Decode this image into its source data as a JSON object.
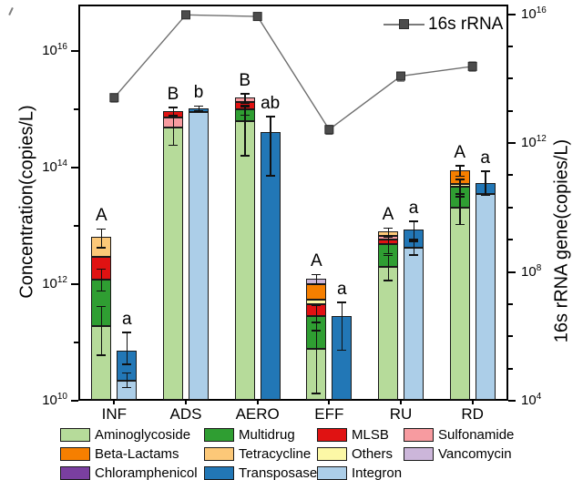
{
  "chart_data": {
    "type": "bar",
    "subtype": "stacked-log-bar-pairs-with-line-overlay",
    "categories": [
      "INF",
      "ADS",
      "AERO",
      "EFF",
      "RU",
      "RD"
    ],
    "left_axis": {
      "label": "Concentration(copies/L)",
      "scale": "log10",
      "log_min": 10,
      "log_max": 16.8,
      "major_ticks": [
        10,
        12,
        14,
        16
      ],
      "minor_ticks": [
        11,
        13,
        15
      ]
    },
    "right_axis": {
      "label": "16s rRNA gene(copies/L)",
      "scale": "log10",
      "log_min": 4,
      "log_max": 16.3,
      "major_ticks": [
        4,
        8,
        12,
        16
      ],
      "minor_ticks": [
        5,
        6,
        7,
        9,
        10,
        11,
        13,
        14,
        15
      ]
    },
    "colors": {
      "Aminoglycoside": "#b6db9a",
      "Multidrug": "#2f9e32",
      "MLSB": "#e01212",
      "Sulfonamide": "#f79ba0",
      "Beta-Lactams": "#f67f00",
      "Tetracycline": "#fcc878",
      "Others": "#fcf8a6",
      "Vancomycin": "#ccb6da",
      "Chloramphenicol": "#7a3fa0",
      "Transposase": "#2277b6",
      "Integron": "#accee8",
      "line": "#6f6f6f",
      "marker": "#4c4c4c",
      "bar_edge": "#1a1a1a"
    },
    "line": {
      "name": "16s rRNA",
      "axis": "right",
      "log_values": [
        13.41,
        15.98,
        15.93,
        12.42,
        14.08,
        14.38
      ],
      "err_lo": [
        13.27,
        15.92,
        15.86,
        12.27,
        13.92,
        14.23
      ],
      "err_hi": [
        13.53,
        16.03,
        15.99,
        12.55,
        14.2,
        14.52
      ]
    },
    "groups": [
      {
        "category": "INF",
        "args": {
          "letter": "A",
          "segments": [
            {
              "class": "Aminoglycoside",
              "top_log": 11.28
            },
            {
              "class": "Multidrug",
              "top_log": 12.08
            },
            {
              "class": "MLSB",
              "top_log": 12.47
            },
            {
              "class": "Tetracycline",
              "top_log": 12.81
            }
          ],
          "errors": [
            {
              "at": 12.81,
              "lo": 12.62,
              "hi": 12.95
            },
            {
              "at": 12.08,
              "lo": 11.88,
              "hi": 12.26
            },
            {
              "at": 11.28,
              "lo": 10.78,
              "hi": 11.62
            }
          ]
        },
        "mge": {
          "letter": "a",
          "segments": [
            {
              "class": "Integron",
              "top_log": 10.35
            },
            {
              "class": "Transposase",
              "top_log": 10.86
            }
          ],
          "errors": [
            {
              "at": 10.86,
              "lo": 10.62,
              "hi": 11.18
            },
            {
              "at": 10.35,
              "lo": 10.22,
              "hi": 10.48
            }
          ]
        }
      },
      {
        "category": "ADS",
        "args": {
          "letter": "B",
          "segments": [
            {
              "class": "Aminoglycoside",
              "top_log": 14.69
            },
            {
              "class": "Sulfonamide",
              "top_log": 14.86
            },
            {
              "class": "MLSB",
              "top_log": 14.97
            }
          ],
          "errors": [
            {
              "at": 14.97,
              "lo": 14.89,
              "hi": 15.04
            },
            {
              "at": 14.69,
              "lo": 14.38,
              "hi": 14.9
            }
          ]
        },
        "mge": {
          "letter": "b",
          "segments": [
            {
              "class": "Integron",
              "top_log": 14.95
            },
            {
              "class": "Transposase",
              "top_log": 15.02
            }
          ],
          "errors": [
            {
              "at": 15.02,
              "lo": 14.97,
              "hi": 15.06
            }
          ]
        }
      },
      {
        "category": "AERO",
        "args": {
          "letter": "B",
          "segments": [
            {
              "class": "Aminoglycoside",
              "top_log": 14.8
            },
            {
              "class": "Multidrug",
              "top_log": 15.0
            },
            {
              "class": "MLSB",
              "top_log": 15.12
            },
            {
              "class": "Sulfonamide",
              "top_log": 15.2
            }
          ],
          "errors": [
            {
              "at": 15.2,
              "lo": 15.1,
              "hi": 15.27
            },
            {
              "at": 15.0,
              "lo": 14.9,
              "hi": 15.08
            },
            {
              "at": 14.8,
              "lo": 14.2,
              "hi": 15.05
            }
          ]
        },
        "mge": {
          "letter": "ab",
          "segments": [
            {
              "class": "Transposase",
              "top_log": 14.61
            }
          ],
          "errors": [
            {
              "at": 14.61,
              "lo": 13.86,
              "hi": 14.88
            }
          ]
        }
      },
      {
        "category": "EFF",
        "args": {
          "letter": "A",
          "segments": [
            {
              "class": "Aminoglycoside",
              "top_log": 10.89
            },
            {
              "class": "Multidrug",
              "top_log": 11.45
            },
            {
              "class": "MLSB",
              "top_log": 11.66
            },
            {
              "class": "Others",
              "top_log": 11.73
            },
            {
              "class": "Beta-Lactams",
              "top_log": 12.0
            },
            {
              "class": "Vancomycin",
              "top_log": 12.1
            }
          ],
          "errors": [
            {
              "at": 12.1,
              "lo": 12.0,
              "hi": 12.17
            },
            {
              "at": 11.45,
              "lo": 11.2,
              "hi": 11.64
            },
            {
              "at": 10.89,
              "lo": 10.12,
              "hi": 11.35
            }
          ]
        },
        "mge": {
          "letter": "a",
          "segments": [
            {
              "class": "Transposase",
              "top_log": 11.45
            }
          ],
          "errors": [
            {
              "at": 11.45,
              "lo": 10.86,
              "hi": 11.69
            }
          ]
        }
      },
      {
        "category": "RU",
        "args": {
          "letter": "A",
          "segments": [
            {
              "class": "Aminoglycoside",
              "top_log": 12.3
            },
            {
              "class": "Multidrug",
              "top_log": 12.69
            },
            {
              "class": "MLSB",
              "top_log": 12.76
            },
            {
              "class": "Sulfonamide",
              "top_log": 12.83
            },
            {
              "class": "Tetracycline",
              "top_log": 12.9
            }
          ],
          "errors": [
            {
              "at": 12.9,
              "lo": 12.8,
              "hi": 12.97
            },
            {
              "at": 12.69,
              "lo": 12.52,
              "hi": 12.84
            },
            {
              "at": 12.3,
              "lo": 12.06,
              "hi": 12.5
            }
          ]
        },
        "mge": {
          "letter": "a",
          "segments": [
            {
              "class": "Integron",
              "top_log": 12.62
            },
            {
              "class": "Transposase",
              "top_log": 12.94
            }
          ],
          "errors": [
            {
              "at": 12.94,
              "lo": 12.76,
              "hi": 13.08
            },
            {
              "at": 12.62,
              "lo": 12.5,
              "hi": 12.74
            }
          ]
        }
      },
      {
        "category": "RD",
        "args": {
          "letter": "A",
          "segments": [
            {
              "class": "Aminoglycoside",
              "top_log": 13.31
            },
            {
              "class": "Multidrug",
              "top_log": 13.67
            },
            {
              "class": "Others",
              "top_log": 13.72
            },
            {
              "class": "Beta-Lactams",
              "top_log": 13.95
            }
          ],
          "errors": [
            {
              "at": 13.95,
              "lo": 13.85,
              "hi": 14.04
            },
            {
              "at": 13.67,
              "lo": 13.5,
              "hi": 13.8
            },
            {
              "at": 13.31,
              "lo": 13.02,
              "hi": 13.55
            }
          ]
        },
        "mge": {
          "letter": "a",
          "segments": [
            {
              "class": "Integron",
              "top_log": 13.55
            },
            {
              "class": "Transposase",
              "top_log": 13.73
            }
          ],
          "errors": [
            {
              "at": 13.73,
              "lo": 13.52,
              "hi": 13.94
            }
          ]
        }
      }
    ],
    "legend": {
      "rows": [
        [
          "Aminoglycoside",
          "Multidrug",
          "MLSB",
          "Sulfonamide"
        ],
        [
          "Beta-Lactams",
          "Tetracycline",
          "Others",
          "Vancomycin"
        ],
        [
          "Chloramphenicol",
          "Transposase",
          "Integron"
        ]
      ]
    }
  }
}
